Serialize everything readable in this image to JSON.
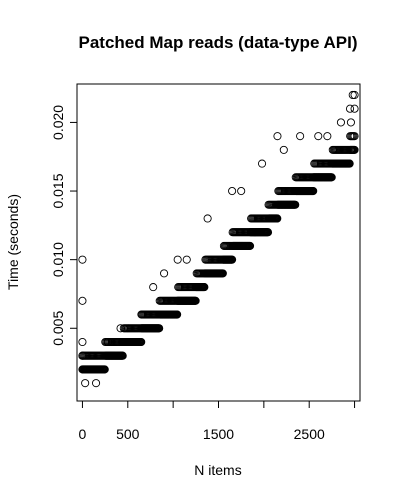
{
  "chart_data": {
    "type": "scatter",
    "title": "Patched Map reads (data-type API)",
    "xlabel": "N items",
    "ylabel": "Time (seconds)",
    "xlim": [
      -60,
      3060
    ],
    "ylim": [
      -0.0003,
      0.0228
    ],
    "x_ticks": [
      0,
      500,
      1000,
      1500,
      2000,
      2500,
      3000
    ],
    "x_tick_labels": [
      "0",
      "500",
      "",
      "1500",
      "",
      "2500",
      ""
    ],
    "y_ticks": [
      0.005,
      0.01,
      0.015,
      0.02
    ],
    "y_tick_labels": [
      "0.005",
      "0.010",
      "0.015",
      "0.020"
    ],
    "grid": false,
    "legend": "none",
    "marker": "open-circle",
    "marker_color": "#000000",
    "band_points": [
      [
        0,
        0.002
      ],
      [
        100,
        0.002
      ],
      [
        200,
        0.002
      ],
      [
        300,
        0.003
      ],
      [
        400,
        0.003
      ],
      [
        500,
        0.004
      ],
      [
        600,
        0.004
      ],
      [
        700,
        0.005
      ],
      [
        800,
        0.005
      ],
      [
        900,
        0.006
      ],
      [
        1000,
        0.006
      ],
      [
        1100,
        0.007
      ],
      [
        1200,
        0.007
      ],
      [
        1300,
        0.008
      ],
      [
        1400,
        0.009
      ],
      [
        1500,
        0.009
      ],
      [
        1600,
        0.01
      ],
      [
        1700,
        0.011
      ],
      [
        1800,
        0.011
      ],
      [
        1900,
        0.012
      ],
      [
        2000,
        0.012
      ],
      [
        2100,
        0.013
      ],
      [
        2200,
        0.014
      ],
      [
        2300,
        0.014
      ],
      [
        2400,
        0.015
      ],
      [
        2500,
        0.015
      ],
      [
        2600,
        0.016
      ],
      [
        2700,
        0.016
      ],
      [
        2800,
        0.017
      ],
      [
        2900,
        0.017
      ],
      [
        3000,
        0.018
      ]
    ],
    "outliers": [
      [
        0,
        0.01
      ],
      [
        0,
        0.007
      ],
      [
        0,
        0.004
      ],
      [
        0,
        0.003
      ],
      [
        30,
        0.001
      ],
      [
        150,
        0.001
      ],
      [
        280,
        0.004
      ],
      [
        420,
        0.005
      ],
      [
        650,
        0.006
      ],
      [
        780,
        0.008
      ],
      [
        900,
        0.009
      ],
      [
        1050,
        0.01
      ],
      [
        1150,
        0.01
      ],
      [
        1380,
        0.013
      ],
      [
        1650,
        0.015
      ],
      [
        1750,
        0.015
      ],
      [
        1980,
        0.017
      ],
      [
        2150,
        0.019
      ],
      [
        2220,
        0.018
      ],
      [
        2400,
        0.019
      ],
      [
        2600,
        0.019
      ],
      [
        2700,
        0.019
      ],
      [
        2850,
        0.02
      ],
      [
        2950,
        0.021
      ],
      [
        2980,
        0.022
      ],
      [
        3000,
        0.022
      ],
      [
        3000,
        0.021
      ],
      [
        2960,
        0.02
      ]
    ]
  }
}
